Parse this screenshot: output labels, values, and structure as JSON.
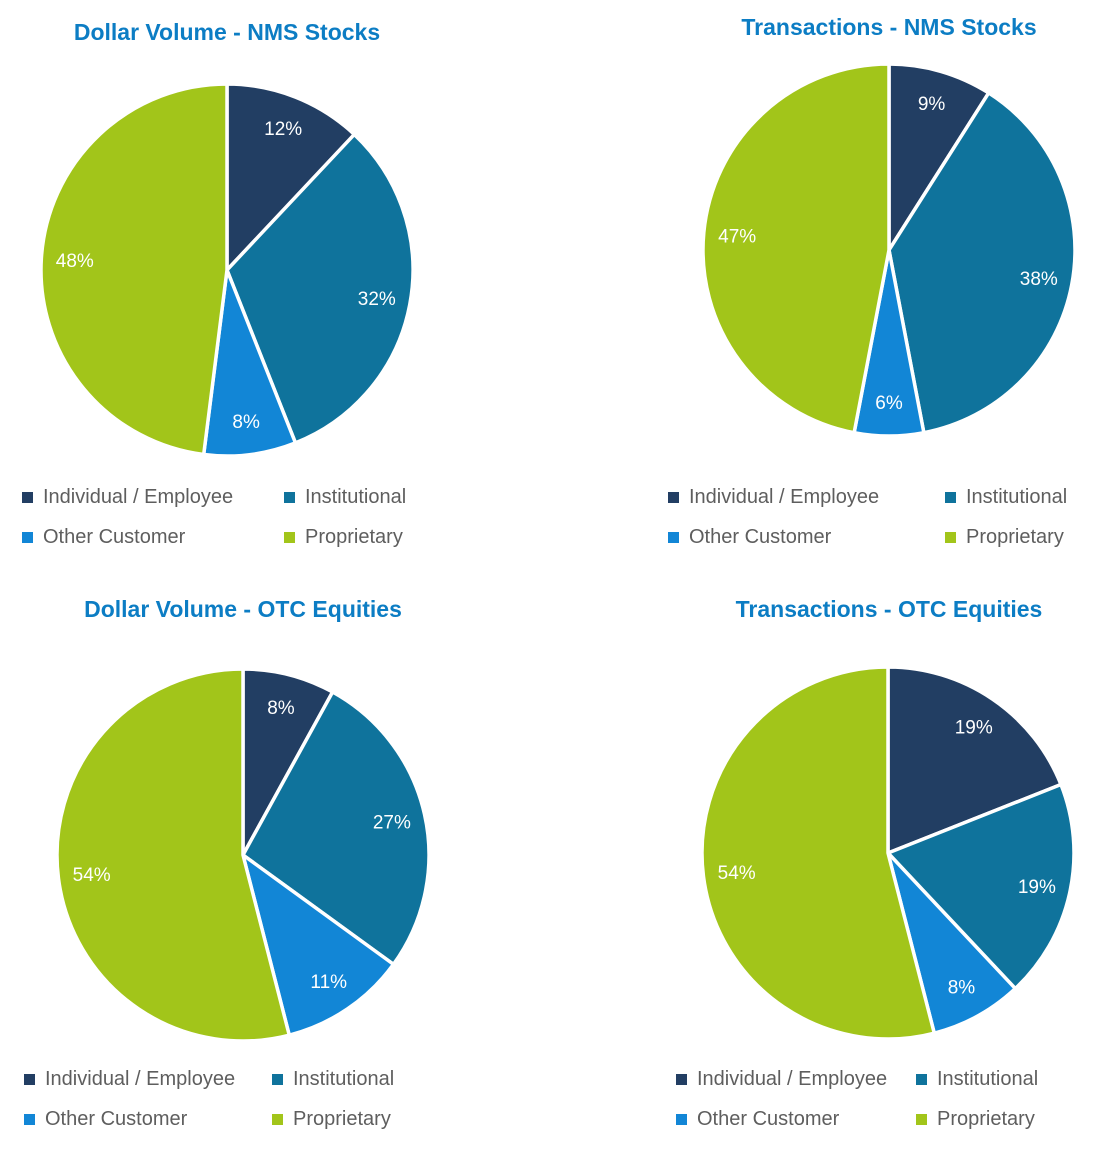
{
  "page": {
    "background": "#ffffff"
  },
  "palette": {
    "title_color": "#0C7DC4",
    "legend_text_color": "#5E5E5E",
    "slice_label_color": "#FFFFFF",
    "slice_separator_color": "#FFFFFF",
    "slice_colors": [
      "#223E63",
      "#0F739C",
      "#1286D6",
      "#A2C51A"
    ]
  },
  "legend_labels": [
    "Individual / Employee",
    "Institutional",
    "Other Customer",
    "Proprietary"
  ],
  "chart_data": [
    {
      "type": "pie",
      "title": "Dollar Volume - NMS Stocks",
      "labels": [
        "Individual / Employee",
        "Institutional",
        "Other Customer",
        "Proprietary"
      ],
      "values": [
        12,
        32,
        8,
        48
      ],
      "slice_labels": [
        "12%",
        "32%",
        "8%",
        "48%"
      ],
      "colors": [
        "#223E63",
        "#0F739C",
        "#1286D6",
        "#A2C51A"
      ],
      "start_angle_deg": 0,
      "direction": "clockwise",
      "legend_position": "bottom",
      "label_position": "inside-end"
    },
    {
      "type": "pie",
      "title": "Transactions - NMS Stocks",
      "labels": [
        "Individual / Employee",
        "Institutional",
        "Other Customer",
        "Proprietary"
      ],
      "values": [
        9,
        38,
        6,
        47
      ],
      "slice_labels": [
        "9%",
        "38%",
        "6%",
        "47%"
      ],
      "colors": [
        "#223E63",
        "#0F739C",
        "#1286D6",
        "#A2C51A"
      ],
      "start_angle_deg": 0,
      "direction": "clockwise",
      "legend_position": "bottom",
      "label_position": "inside-end"
    },
    {
      "type": "pie",
      "title": "Dollar Volume - OTC Equities",
      "labels": [
        "Individual / Employee",
        "Institutional",
        "Other Customer",
        "Proprietary"
      ],
      "values": [
        8,
        27,
        11,
        54
      ],
      "slice_labels": [
        "8%",
        "27%",
        "11%",
        "54%"
      ],
      "colors": [
        "#223E63",
        "#0F739C",
        "#1286D6",
        "#A2C51A"
      ],
      "start_angle_deg": 0,
      "direction": "clockwise",
      "legend_position": "bottom",
      "label_position": "inside-end"
    },
    {
      "type": "pie",
      "title": "Transactions - OTC Equities",
      "labels": [
        "Individual / Employee",
        "Institutional",
        "Other Customer",
        "Proprietary"
      ],
      "values": [
        19,
        19,
        8,
        54
      ],
      "slice_labels": [
        "19%",
        "19%",
        "8%",
        "54%"
      ],
      "colors": [
        "#223E63",
        "#0F739C",
        "#1286D6",
        "#A2C51A"
      ],
      "start_angle_deg": 0,
      "direction": "clockwise",
      "legend_position": "bottom",
      "label_position": "inside-end"
    }
  ]
}
